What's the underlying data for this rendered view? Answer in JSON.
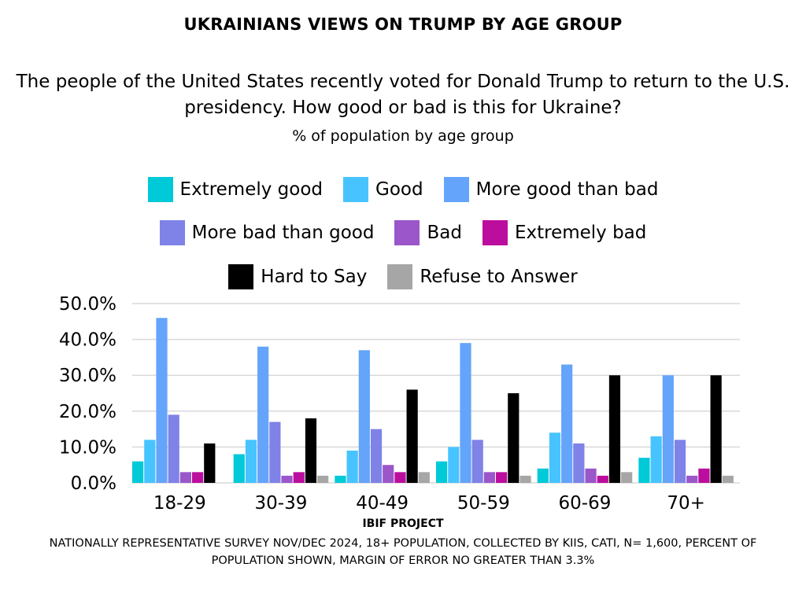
{
  "chart_data": {
    "type": "bar",
    "title": "UKRAINIANS VIEWS ON TRUMP BY AGE GROUP",
    "question": "The people of the United States recently voted for Donald Trump to return to the U.S. presidency. How good or bad is this for Ukraine?",
    "subtitle": "% of population by age group",
    "xlabel": "",
    "ylabel": "",
    "ylim": [
      0,
      50
    ],
    "yticks": [
      "0.0%",
      "10.0%",
      "20.0%",
      "30.0%",
      "40.0%",
      "50.0%"
    ],
    "ytick_values": [
      0,
      10,
      20,
      30,
      40,
      50
    ],
    "grid": true,
    "legend_position": "top-center",
    "categories": [
      "18-29",
      "30-39",
      "40-49",
      "50-59",
      "60-69",
      "70+"
    ],
    "series": [
      {
        "name": "Extremely good",
        "color": "#00C9D8",
        "values": [
          6,
          8,
          2,
          6,
          4,
          7
        ]
      },
      {
        "name": "Good",
        "color": "#47C4FF",
        "values": [
          12,
          12,
          9,
          10,
          14,
          13
        ]
      },
      {
        "name": "More good than bad",
        "color": "#64A4FA",
        "values": [
          46,
          38,
          37,
          39,
          33,
          30
        ]
      },
      {
        "name": "More bad than good",
        "color": "#7F82E6",
        "values": [
          19,
          17,
          15,
          12,
          11,
          12
        ]
      },
      {
        "name": "Bad",
        "color": "#9B56C9",
        "values": [
          3,
          2,
          5,
          3,
          4,
          2
        ]
      },
      {
        "name": "Extremely bad",
        "color": "#BC0E9E",
        "values": [
          3,
          3,
          3,
          3,
          2,
          4
        ]
      },
      {
        "name": "Hard to Say",
        "color": "#000000",
        "values": [
          11,
          18,
          26,
          25,
          30,
          30
        ]
      },
      {
        "name": "Refuse to Answer",
        "color": "#A6A6A6",
        "values": [
          0,
          2,
          3,
          2,
          3,
          2
        ]
      }
    ]
  },
  "footer": {
    "project": "IBIF PROJECT",
    "note": "NATIONALLY REPRESENTATIVE SURVEY NOV/DEC 2024, 18+ POPULATION, COLLECTED BY KIIS, CATI, N= 1,600, PERCENT OF POPULATION SHOWN, MARGIN OF ERROR NO GREATER THAN 3.3%"
  }
}
